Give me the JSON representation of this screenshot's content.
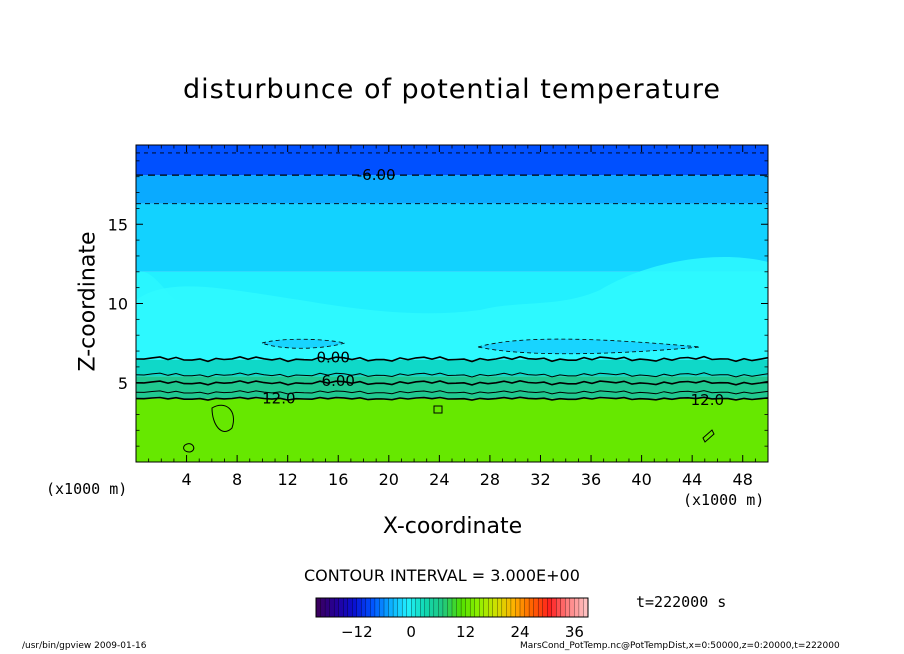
{
  "chart_data": {
    "type": "heatmap",
    "title": "disturbunce of potential temperature",
    "xlabel": "X-coordinate",
    "ylabel": "Z-coordinate",
    "x_unit": "(x1000 m)",
    "xlim": [
      0,
      50
    ],
    "ylim": [
      0,
      20
    ],
    "x_ticks": [
      4,
      8,
      12,
      16,
      20,
      24,
      28,
      32,
      36,
      40,
      44,
      48
    ],
    "y_ticks": [
      5,
      10,
      15
    ],
    "bands": [
      {
        "z_from": 0,
        "z_to": 4,
        "value_range": [
          12,
          15
        ],
        "color": "#66e800"
      },
      {
        "z_from": 4,
        "z_to": 5.4,
        "value_range": [
          6,
          12
        ],
        "color": "#20c890"
      },
      {
        "z_from": 5.4,
        "z_to": 6.5,
        "value_range": [
          0,
          6
        ],
        "color": "#0fd8c8"
      },
      {
        "z_from": 6.5,
        "z_to": 12,
        "value_range": [
          -3,
          0
        ],
        "color": "#22f0ff"
      },
      {
        "z_from": 12,
        "z_to": 16.3,
        "value_range": [
          -6,
          -3
        ],
        "color": "#12d2ff"
      },
      {
        "z_from": 16.3,
        "z_to": 18.1,
        "value_range": [
          -9,
          -6
        ],
        "color": "#0aaaff"
      },
      {
        "z_from": 18.1,
        "z_to": 20,
        "value_range": [
          -12,
          -9
        ],
        "color": "#0050ff"
      }
    ],
    "contour_labels": [
      {
        "text": "-6.00",
        "x": 19,
        "z": 18.1
      },
      {
        "text": "0.00",
        "x": 15.6,
        "z": 6.6
      },
      {
        "text": "6.00",
        "x": 16,
        "z": 5.1
      },
      {
        "text": "12.0",
        "x": 11.3,
        "z": 4.0
      },
      {
        "text": "12.0",
        "x": 45.2,
        "z": 3.9
      }
    ],
    "contour_interval": "CONTOUR INTERVAL = 3.000E+00",
    "colorbar": {
      "ticks": [
        -12,
        0,
        12,
        24,
        36
      ],
      "range": [
        -21,
        39
      ],
      "colors": [
        "#3a0060",
        "#24009a",
        "#0a10d0",
        "#0050ff",
        "#0aaaff",
        "#22f0ff",
        "#10d8b0",
        "#20c880",
        "#50e000",
        "#90f000",
        "#d0e000",
        "#ffb000",
        "#ff6000",
        "#ff2020",
        "#ff8080",
        "#ffc0c0"
      ]
    },
    "time_label": "t=222000 s",
    "footer_left": "/usr/bin/gpview   2009-01-16",
    "footer_right": "MarsCond_PotTemp.nc@PotTempDist,x=0:50000,z=0:20000,t=222000"
  }
}
